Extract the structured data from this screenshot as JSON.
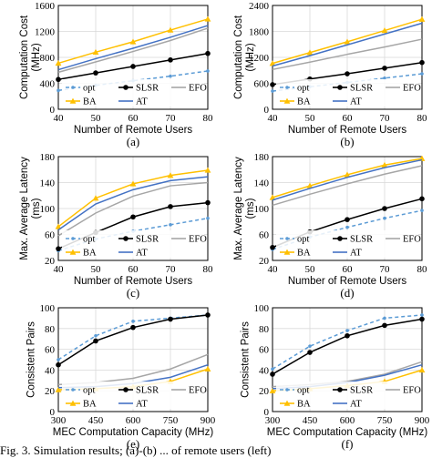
{
  "series_styles": {
    "opt": {
      "color": "#5b9bd5",
      "dash": "4,3",
      "marker": "dot-small"
    },
    "SLSR": {
      "color": "#000000",
      "dash": "",
      "marker": "dot"
    },
    "EFO": {
      "color": "#a6a6a6",
      "dash": "",
      "marker": "none"
    },
    "BA": {
      "color": "#ffc000",
      "dash": "",
      "marker": "triangle"
    },
    "AT": {
      "color": "#4472c4",
      "dash": "",
      "marker": "none"
    }
  },
  "chart_data": [
    {
      "type": "line",
      "subplot_label": "(a)",
      "xlabel": "Number of Remote Users",
      "ylabel": "Computation Cost (MHz)",
      "x": [
        40,
        50,
        60,
        70,
        80
      ],
      "xlim": [
        40,
        80
      ],
      "ylim": [
        0,
        1600
      ],
      "xticks": [
        "40",
        "50",
        "60",
        "70",
        "80"
      ],
      "yticks": [
        "0",
        "400",
        "800",
        "1200",
        "1600"
      ],
      "yticks_values": [
        0,
        400,
        800,
        1200,
        1600
      ],
      "series": [
        {
          "name": "opt",
          "values": [
            290,
            370,
            440,
            510,
            590
          ]
        },
        {
          "name": "SLSR",
          "values": [
            460,
            560,
            660,
            760,
            860
          ]
        },
        {
          "name": "EFO",
          "values": [
            570,
            730,
            890,
            1060,
            1250
          ]
        },
        {
          "name": "BA",
          "values": [
            710,
            880,
            1040,
            1220,
            1390
          ]
        },
        {
          "name": "AT",
          "values": [
            610,
            780,
            940,
            1110,
            1290
          ]
        }
      ]
    },
    {
      "type": "line",
      "subplot_label": "(b)",
      "xlabel": "Number of Remote Users",
      "ylabel": "Computation Cost (MHz)",
      "x": [
        40,
        50,
        60,
        70,
        80
      ],
      "xlim": [
        40,
        80
      ],
      "ylim": [
        0,
        2400
      ],
      "xticks": [
        "40",
        "50",
        "60",
        "70",
        "80"
      ],
      "yticks": [
        "0",
        "600",
        "1200",
        "1800",
        "2400"
      ],
      "yticks_values": [
        0,
        600,
        1200,
        1800,
        2400
      ],
      "series": [
        {
          "name": "opt",
          "values": [
            420,
            520,
            620,
            720,
            820
          ]
        },
        {
          "name": "SLSR",
          "values": [
            570,
            700,
            820,
            950,
            1080
          ]
        },
        {
          "name": "EFO",
          "values": [
            920,
            1090,
            1270,
            1440,
            1620
          ]
        },
        {
          "name": "BA",
          "values": [
            1060,
            1310,
            1560,
            1820,
            2080
          ]
        },
        {
          "name": "AT",
          "values": [
            1000,
            1240,
            1490,
            1740,
            1990
          ]
        }
      ]
    },
    {
      "type": "line",
      "subplot_label": "(c)",
      "xlabel": "Number of Remote Users",
      "ylabel": "Max. Average Latency (ms)",
      "x": [
        40,
        50,
        60,
        70,
        80
      ],
      "xlim": [
        40,
        80
      ],
      "ylim": [
        20,
        180
      ],
      "xticks": [
        "40",
        "50",
        "60",
        "70",
        "80"
      ],
      "yticks": [
        "20",
        "60",
        "100",
        "140",
        "180"
      ],
      "yticks_values": [
        20,
        60,
        100,
        140,
        180
      ],
      "series": [
        {
          "name": "opt",
          "values": [
            35,
            53,
            65,
            75,
            85
          ]
        },
        {
          "name": "SLSR",
          "values": [
            38,
            63,
            87,
            103,
            109
          ]
        },
        {
          "name": "EFO",
          "values": [
            58,
            93,
            119,
            135,
            140
          ]
        },
        {
          "name": "BA",
          "values": [
            72,
            116,
            138,
            151,
            159
          ]
        },
        {
          "name": "AT",
          "values": [
            67,
            107,
            129,
            143,
            149
          ]
        }
      ]
    },
    {
      "type": "line",
      "subplot_label": "(d)",
      "xlabel": "Number of Remote Users",
      "ylabel": "Max. Average Latency (ms)",
      "x": [
        40,
        50,
        60,
        70,
        80
      ],
      "xlim": [
        40,
        80
      ],
      "ylim": [
        20,
        180
      ],
      "xticks": [
        "40",
        "50",
        "60",
        "70",
        "80"
      ],
      "yticks": [
        "20",
        "60",
        "100",
        "140",
        "180"
      ],
      "yticks_values": [
        20,
        60,
        100,
        140,
        180
      ],
      "series": [
        {
          "name": "opt",
          "values": [
            37,
            56,
            71,
            85,
            97
          ]
        },
        {
          "name": "SLSR",
          "values": [
            40,
            64,
            83,
            100,
            115
          ]
        },
        {
          "name": "EFO",
          "values": [
            105,
            122,
            138,
            153,
            166
          ]
        },
        {
          "name": "BA",
          "values": [
            117,
            135,
            152,
            167,
            177
          ]
        },
        {
          "name": "AT",
          "values": [
            113,
            131,
            148,
            163,
            175
          ]
        }
      ]
    },
    {
      "type": "line",
      "subplot_label": "(e)",
      "xlabel": "MEC Computation Capacity (MHz)",
      "ylabel": "Consistent Pairs",
      "x": [
        300,
        450,
        600,
        750,
        900
      ],
      "xlim": [
        300,
        900
      ],
      "ylim": [
        0,
        100
      ],
      "xticks": [
        "300",
        "450",
        "600",
        "750",
        "900"
      ],
      "yticks": [
        "0",
        "20",
        "40",
        "60",
        "80",
        "100"
      ],
      "yticks_values": [
        0,
        20,
        40,
        60,
        80,
        100
      ],
      "series": [
        {
          "name": "opt",
          "values": [
            50,
            73,
            87,
            90,
            93
          ]
        },
        {
          "name": "SLSR",
          "values": [
            45,
            68,
            81,
            89,
            93
          ]
        },
        {
          "name": "EFO",
          "values": [
            26,
            28,
            32,
            41,
            55
          ]
        },
        {
          "name": "BA",
          "values": [
            21,
            22,
            24,
            29,
            41
          ]
        },
        {
          "name": "AT",
          "values": [
            23,
            24,
            27,
            33,
            45
          ]
        }
      ]
    },
    {
      "type": "line",
      "subplot_label": "(f)",
      "xlabel": "MEC Computation Capacity (MHz)",
      "ylabel": "Consistent Pairs",
      "x": [
        300,
        450,
        600,
        750,
        900
      ],
      "xlim": [
        300,
        900
      ],
      "ylim": [
        0,
        100
      ],
      "xticks": [
        "300",
        "450",
        "600",
        "750",
        "900"
      ],
      "yticks": [
        "0",
        "20",
        "40",
        "60",
        "80",
        "100"
      ],
      "yticks_values": [
        0,
        20,
        40,
        60,
        80,
        100
      ],
      "series": [
        {
          "name": "opt",
          "values": [
            41,
            63,
            78,
            90,
            93
          ]
        },
        {
          "name": "SLSR",
          "values": [
            36,
            57,
            73,
            83,
            89
          ]
        },
        {
          "name": "EFO",
          "values": [
            24,
            26,
            29,
            36,
            48
          ]
        },
        {
          "name": "BA",
          "values": [
            20,
            22,
            25,
            29,
            40
          ]
        },
        {
          "name": "AT",
          "values": [
            22,
            24,
            28,
            35,
            45
          ]
        }
      ]
    }
  ],
  "legend": {
    "row1": [
      "opt",
      "SLSR",
      "EFO"
    ],
    "row2": [
      "BA",
      "AT"
    ],
    "position": "bottom-inside"
  },
  "caption_text": "Fig. 3. Simulation results; (a)-(b) ... of remote users (left)"
}
